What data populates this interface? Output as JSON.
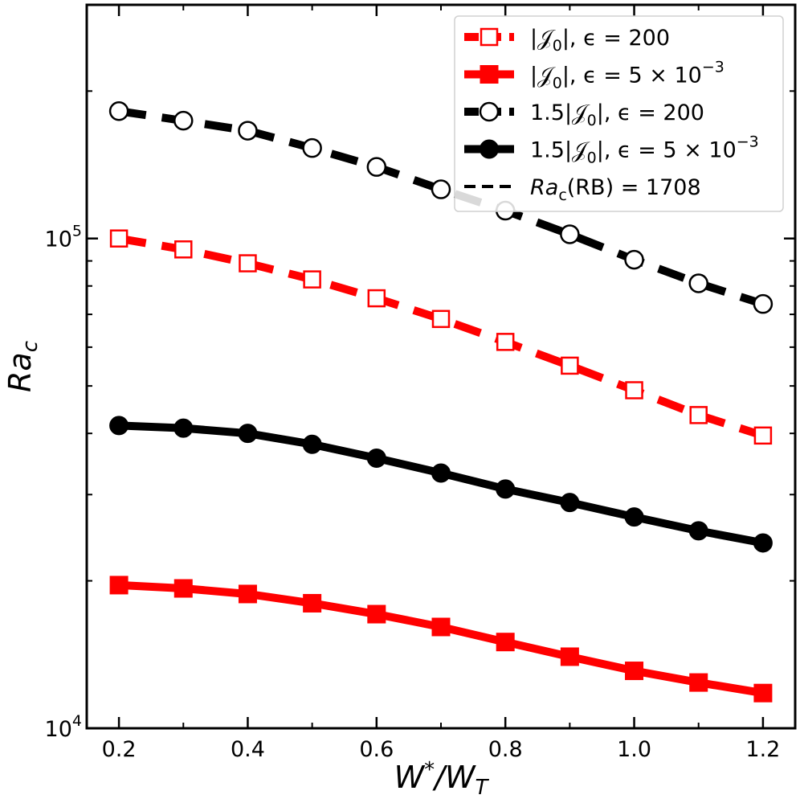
{
  "chart_data": {
    "type": "line",
    "xlabel": "W*/W_T",
    "ylabel": "Ra_c",
    "xlim": [
      0.15,
      1.25
    ],
    "ylim": [
      10000,
      300000
    ],
    "yscale": "log",
    "grid": false,
    "x_ticks": [
      0.2,
      0.4,
      0.6,
      0.8,
      1.0,
      1.2
    ],
    "x_tick_labels": [
      "0.2",
      "0.4",
      "0.6",
      "0.8",
      "1.0",
      "1.2"
    ],
    "y_major_ticks": [
      10000,
      100000
    ],
    "y_major_tick_labels": [
      {
        "base": "10",
        "exp": "4"
      },
      {
        "base": "10",
        "exp": "5"
      }
    ],
    "legend_position": "top-right",
    "x": [
      0.2,
      0.3,
      0.4,
      0.5,
      0.6,
      0.7,
      0.8,
      0.9,
      1.0,
      1.1,
      1.2
    ],
    "series": [
      {
        "name": "|J0|, eps = 200",
        "label_main": "|𝒥",
        "label_sub": "0",
        "label_rest": "|, ϵ = 200",
        "label_exp": "",
        "color": "#ff0000",
        "marker": "square-open",
        "dashed": true,
        "values": [
          100000,
          95000,
          89000,
          82500,
          75500,
          68500,
          61500,
          55000,
          49000,
          43600,
          39600
        ]
      },
      {
        "name": "|J0|, eps = 5x10^-3",
        "label_main": "|𝒥",
        "label_sub": "0",
        "label_rest": "|, ϵ = 5 × 10",
        "label_exp": "−3",
        "color": "#ff0000",
        "marker": "square-filled",
        "dashed": false,
        "values": [
          19600,
          19300,
          18800,
          18000,
          17100,
          16100,
          15000,
          14000,
          13100,
          12400,
          11800
        ]
      },
      {
        "name": "1.5|J0|, eps = 200",
        "label_main": "1.5|𝒥",
        "label_sub": "0",
        "label_rest": "|, ϵ = 200",
        "label_exp": "",
        "color": "#000000",
        "marker": "circle-open",
        "dashed": true,
        "values": [
          182000,
          174000,
          166000,
          153000,
          140000,
          126000,
          114000,
          102000,
          90500,
          81000,
          73500
        ]
      },
      {
        "name": "1.5|J0|, eps = 5x10^-3",
        "label_main": "1.5|𝒥",
        "label_sub": "0",
        "label_rest": "|, ϵ = 5 × 10",
        "label_exp": "−3",
        "color": "#000000",
        "marker": "circle-filled",
        "dashed": false,
        "values": [
          41500,
          41000,
          40000,
          38000,
          35600,
          33200,
          30800,
          28900,
          27000,
          25300,
          23900
        ]
      }
    ],
    "reference": {
      "name": "Ra_c(RB) = 1708",
      "label_main": "Ra",
      "label_sub": "c",
      "label_rest": "(RB) = 1708",
      "value": 1708,
      "color": "#000000",
      "dashed": true
    }
  }
}
